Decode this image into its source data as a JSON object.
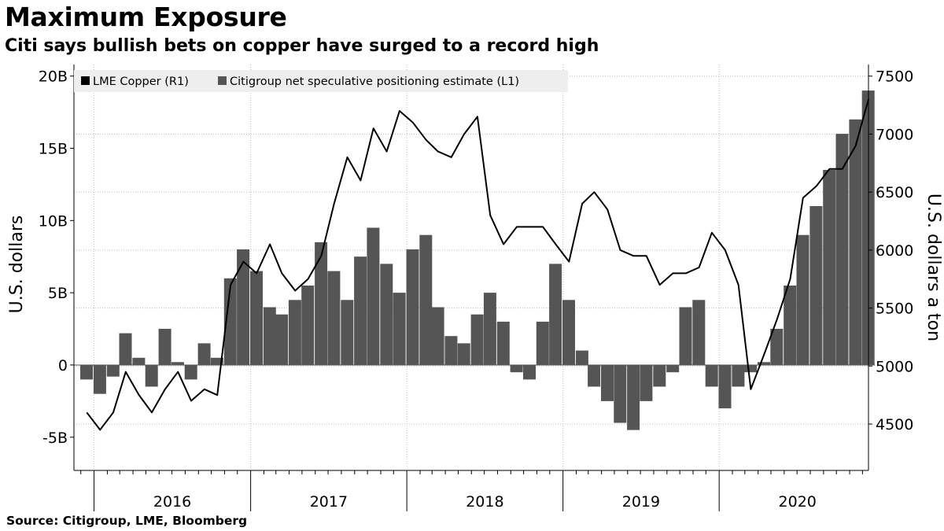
{
  "title": "Maximum Exposure",
  "subtitle": "Citi says bullish bets on copper have surged to a record high",
  "source": "Source: Citigroup, LME, Bloomberg",
  "colors": {
    "bars": "#555555",
    "line": "#000000",
    "grid": "#bdbdbd",
    "legend_bg": "#eeeeee",
    "background": "#ffffff"
  },
  "chart_data": {
    "type": "bar",
    "combo": "bar + line (dual axis)",
    "legend": {
      "placement": "top-left",
      "entries": [
        "LME Copper (R1)",
        "Citigroup net speculative positioning estimate (L1)"
      ]
    },
    "grid": true,
    "x_axis": {
      "type": "time",
      "range": [
        "2015-11-15",
        "2020-12-15"
      ],
      "tick_labels": [
        "2016",
        "2017",
        "2018",
        "2019",
        "2020"
      ]
    },
    "y_left": {
      "label": "U.S. dollars",
      "range": [
        -7.3,
        20.8
      ],
      "ticks": [
        -5,
        0,
        5,
        10,
        15,
        20
      ],
      "tick_labels": [
        "-5B",
        "0",
        "5B",
        "10B",
        "15B",
        "20B"
      ],
      "unit": "billion"
    },
    "y_right": {
      "label": "U.S. dollars a ton",
      "range": [
        4100,
        7600
      ],
      "ticks": [
        4500,
        5000,
        5500,
        6000,
        6500,
        7000,
        7500
      ],
      "tick_labels": [
        "4500",
        "5000",
        "5500",
        "6000",
        "6500",
        "7000",
        "7500"
      ]
    },
    "series": [
      {
        "name": "Citigroup net speculative positioning estimate (L1)",
        "kind": "bar",
        "axis": "left",
        "x": [
          "2015-12",
          "2016-01",
          "2016-02",
          "2016-03",
          "2016-04",
          "2016-05",
          "2016-06",
          "2016-07",
          "2016-08",
          "2016-09",
          "2016-10",
          "2016-11",
          "2016-12",
          "2017-01",
          "2017-02",
          "2017-03",
          "2017-04",
          "2017-05",
          "2017-06",
          "2017-07",
          "2017-08",
          "2017-09",
          "2017-10",
          "2017-11",
          "2017-12",
          "2018-01",
          "2018-02",
          "2018-03",
          "2018-04",
          "2018-05",
          "2018-06",
          "2018-07",
          "2018-08",
          "2018-09",
          "2018-10",
          "2018-11",
          "2018-12",
          "2019-01",
          "2019-02",
          "2019-03",
          "2019-04",
          "2019-05",
          "2019-06",
          "2019-07",
          "2019-08",
          "2019-09",
          "2019-10",
          "2019-11",
          "2019-12",
          "2020-01",
          "2020-02",
          "2020-03",
          "2020-04",
          "2020-05",
          "2020-06",
          "2020-07",
          "2020-08",
          "2020-09",
          "2020-10",
          "2020-11",
          "2020-12"
        ],
        "values": [
          -1.0,
          -2.0,
          -0.8,
          2.2,
          0.5,
          -1.5,
          2.5,
          0.2,
          -1.0,
          1.5,
          0.5,
          6.0,
          8.0,
          6.5,
          4.0,
          3.5,
          4.5,
          5.5,
          8.5,
          6.5,
          4.5,
          7.5,
          9.5,
          7.0,
          5.0,
          8.0,
          9.0,
          4.0,
          2.0,
          1.5,
          3.5,
          5.0,
          3.0,
          -0.5,
          -1.0,
          3.0,
          7.0,
          4.5,
          1.0,
          -1.5,
          -2.5,
          -4.0,
          -4.5,
          -2.5,
          -1.5,
          -0.5,
          4.0,
          4.5,
          -1.5,
          -3.0,
          -1.5,
          -0.5,
          0.2,
          2.5,
          5.5,
          9.0,
          11.0,
          13.5,
          16.0,
          17.0,
          19.0
        ]
      },
      {
        "name": "LME Copper (R1)",
        "kind": "line",
        "axis": "right",
        "x": [
          "2015-12",
          "2016-01",
          "2016-02",
          "2016-03",
          "2016-04",
          "2016-05",
          "2016-06",
          "2016-07",
          "2016-08",
          "2016-09",
          "2016-10",
          "2016-11",
          "2016-12",
          "2017-01",
          "2017-02",
          "2017-03",
          "2017-04",
          "2017-05",
          "2017-06",
          "2017-07",
          "2017-08",
          "2017-09",
          "2017-10",
          "2017-11",
          "2017-12",
          "2018-01",
          "2018-02",
          "2018-03",
          "2018-04",
          "2018-05",
          "2018-06",
          "2018-07",
          "2018-08",
          "2018-09",
          "2018-10",
          "2018-11",
          "2018-12",
          "2019-01",
          "2019-02",
          "2019-03",
          "2019-04",
          "2019-05",
          "2019-06",
          "2019-07",
          "2019-08",
          "2019-09",
          "2019-10",
          "2019-11",
          "2019-12",
          "2020-01",
          "2020-02",
          "2020-03",
          "2020-04",
          "2020-05",
          "2020-06",
          "2020-07",
          "2020-08",
          "2020-09",
          "2020-10",
          "2020-11",
          "2020-12"
        ],
        "values": [
          4600,
          4450,
          4600,
          4950,
          4750,
          4600,
          4800,
          4950,
          4700,
          4800,
          4750,
          5700,
          5900,
          5800,
          6050,
          5800,
          5650,
          5750,
          5950,
          6400,
          6800,
          6600,
          7050,
          6850,
          7200,
          7100,
          6950,
          6850,
          6800,
          7000,
          7150,
          6300,
          6050,
          6200,
          6200,
          6200,
          6050,
          5900,
          6400,
          6500,
          6350,
          6000,
          5950,
          5950,
          5700,
          5800,
          5800,
          5850,
          6150,
          6000,
          5700,
          4800,
          5100,
          5400,
          5750,
          6450,
          6550,
          6700,
          6700,
          6900,
          7300
        ]
      }
    ]
  }
}
